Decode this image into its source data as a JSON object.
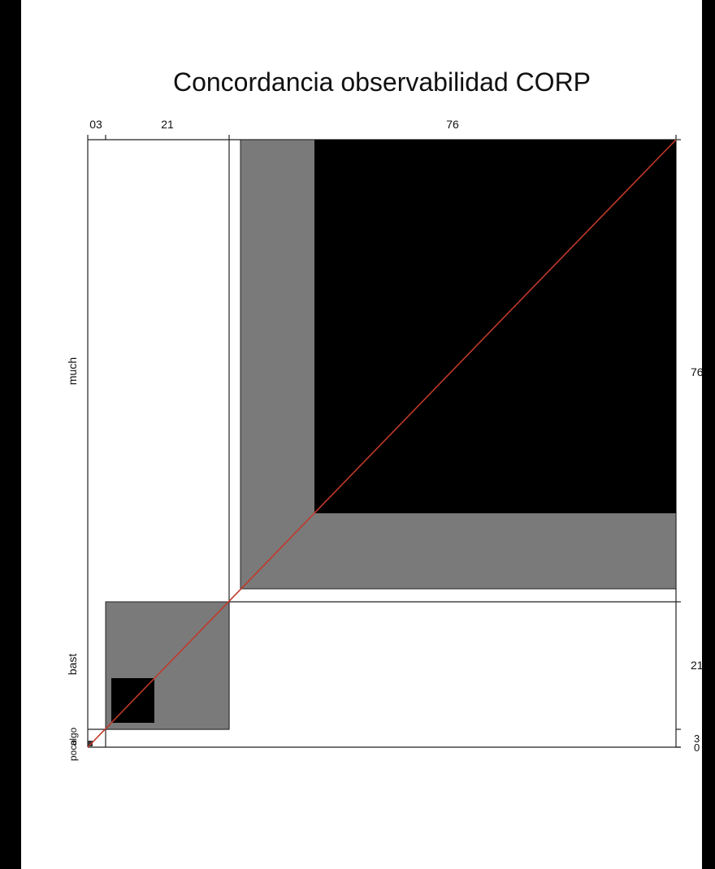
{
  "chart_data": {
    "type": "agreement-plot",
    "title": "Concordancia observabilidad CORP",
    "categories": [
      "poco",
      "algo",
      "bast",
      "much"
    ],
    "top_axis_ticks": [
      "03",
      "21",
      "76"
    ],
    "right_axis_ticks": [
      "76",
      "21",
      "3",
      "0"
    ],
    "left_labels": [
      "much",
      "bast",
      "algo",
      "poco"
    ],
    "colors": {
      "exact_agreement": "#000000",
      "partial_agreement": "#7a7a7a",
      "diagonal": "#c0392b",
      "frame": "#222222"
    }
  }
}
